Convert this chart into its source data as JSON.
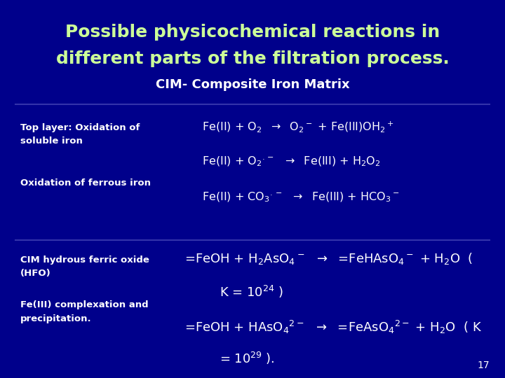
{
  "background_color": "#00008B",
  "title_line1": "Possible physicochemical reactions in",
  "title_line2": "different parts of the filtration process.",
  "subtitle": "CIM- Composite Iron Matrix",
  "title_color": "#CCFF99",
  "subtitle_color": "#FFFFFF",
  "label_color": "#FFFFFF",
  "reaction_color": "#FFFFFF",
  "page_number": "17"
}
